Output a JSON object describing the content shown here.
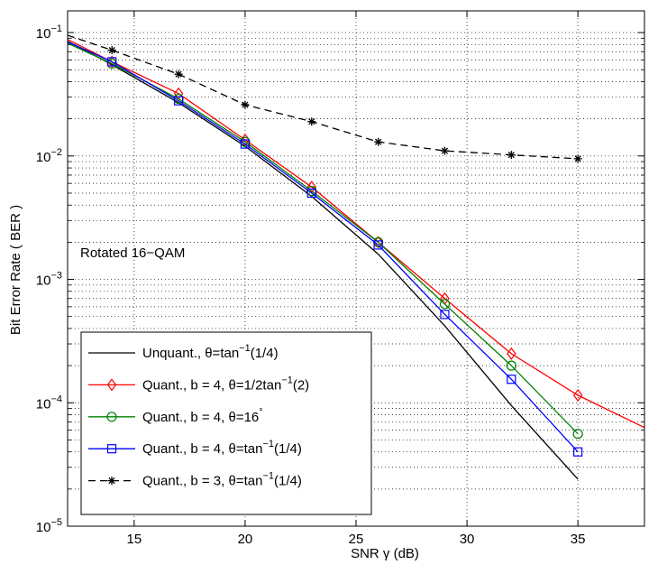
{
  "chart_data": {
    "type": "line",
    "xlabel": "SNR γ (dB)",
    "ylabel": "Bit Error Rate ( BER )",
    "xlim": [
      12,
      38
    ],
    "ylim": [
      1e-05,
      0.15
    ],
    "yscale": "log",
    "grid": true,
    "legend_position": "bottom-left",
    "x_ticks": [
      15,
      20,
      25,
      30,
      35
    ],
    "x_tick_labels": [
      "15",
      "20",
      "25",
      "30",
      "35"
    ],
    "y_ticks": [
      1e-05,
      0.0001,
      0.001,
      0.01,
      0.1
    ],
    "y_tick_labels": [
      {
        "base": "10",
        "exp": "−5"
      },
      {
        "base": "10",
        "exp": "−4"
      },
      {
        "base": "10",
        "exp": "−3"
      },
      {
        "base": "10",
        "exp": "−2"
      },
      {
        "base": "10",
        "exp": "−1"
      }
    ],
    "annotation": "Rotated 16−QAM",
    "series": [
      {
        "name_parts": [
          "Unquant., θ=tan",
          "−1",
          "(1/4)"
        ],
        "color": "#000000",
        "dash": "solid",
        "marker": "none",
        "x": [
          12,
          14,
          17,
          20,
          23,
          26,
          29,
          32,
          35
        ],
        "y": [
          0.085,
          0.055,
          0.027,
          0.012,
          0.0047,
          0.0016,
          0.00042,
          9.5e-05,
          2.4e-05
        ]
      },
      {
        "name_parts": [
          "Quant., b = 4, θ=1/2tan",
          "−1",
          "(2)"
        ],
        "color": "#ff0000",
        "dash": "solid",
        "marker": "diamond",
        "x": [
          12,
          14,
          17,
          20,
          23,
          26,
          29,
          32,
          35,
          38
        ],
        "y": [
          0.088,
          0.058,
          0.032,
          0.0135,
          0.0056,
          0.002,
          0.0007,
          0.00025,
          0.000115,
          6.3e-05
        ],
        "marker_x": [
          14,
          17,
          20,
          23,
          26,
          29,
          32,
          35
        ]
      },
      {
        "name_parts": [
          "Quant., b = 4, θ=16",
          "°",
          ""
        ],
        "color": "#008000",
        "dash": "solid",
        "marker": "circle",
        "x": [
          12,
          14,
          17,
          20,
          23,
          26,
          29,
          32,
          35
        ],
        "y": [
          0.082,
          0.056,
          0.029,
          0.013,
          0.0052,
          0.002,
          0.00063,
          0.0002,
          5.6e-05
        ]
      },
      {
        "name_parts": [
          "Quant., b = 4, θ=tan",
          "−1",
          "(1/4)"
        ],
        "color": "#0000ff",
        "dash": "solid",
        "marker": "square",
        "x": [
          12,
          14,
          17,
          20,
          23,
          26,
          29,
          32,
          35
        ],
        "y": [
          0.084,
          0.058,
          0.028,
          0.0125,
          0.005,
          0.0019,
          0.00052,
          0.000155,
          4e-05
        ]
      },
      {
        "name_parts": [
          "Quant., b = 3, θ=tan",
          "−1",
          "(1/4)"
        ],
        "color": "#000000",
        "dash": "dashed",
        "marker": "star",
        "x": [
          12,
          14,
          17,
          20,
          23,
          26,
          29,
          32,
          35
        ],
        "y": [
          0.095,
          0.072,
          0.046,
          0.026,
          0.019,
          0.013,
          0.011,
          0.0102,
          0.0095
        ]
      }
    ]
  }
}
